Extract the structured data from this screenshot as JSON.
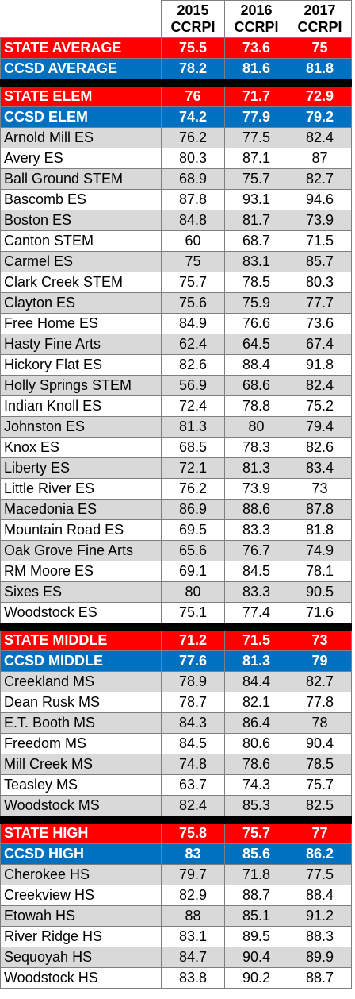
{
  "headers": [
    {
      "year": "2015",
      "label": "CCRPI"
    },
    {
      "year": "2016",
      "label": "CCRPI"
    },
    {
      "year": "2017",
      "label": "CCRPI"
    }
  ],
  "colors": {
    "state": "#ff0000",
    "ccsd": "#0070c0",
    "stripe": "#d9d9d9"
  },
  "rows": [
    {
      "type": "state",
      "name": "STATE AVERAGE",
      "values": [
        "75.5",
        "73.6",
        "75"
      ]
    },
    {
      "type": "ccsd",
      "name": "CCSD AVERAGE",
      "values": [
        "78.2",
        "81.6",
        "81.8"
      ]
    },
    {
      "type": "sep"
    },
    {
      "type": "state",
      "name": "STATE ELEM",
      "values": [
        "76",
        "71.7",
        "72.9"
      ]
    },
    {
      "type": "ccsd",
      "name": "CCSD ELEM",
      "values": [
        "74.2",
        "77.9",
        "79.2"
      ]
    },
    {
      "type": "school",
      "name": "Arnold Mill ES",
      "values": [
        "76.2",
        "77.5",
        "82.4"
      ]
    },
    {
      "type": "school",
      "name": "Avery ES",
      "values": [
        "80.3",
        "87.1",
        "87"
      ]
    },
    {
      "type": "school",
      "name": "Ball Ground STEM",
      "values": [
        "68.9",
        "75.7",
        "82.7"
      ]
    },
    {
      "type": "school",
      "name": "Bascomb ES",
      "values": [
        "87.8",
        "93.1",
        "94.6"
      ]
    },
    {
      "type": "school",
      "name": "Boston ES",
      "values": [
        "84.8",
        "81.7",
        "73.9"
      ]
    },
    {
      "type": "school",
      "name": "Canton STEM",
      "values": [
        "60",
        "68.7",
        "71.5"
      ]
    },
    {
      "type": "school",
      "name": "Carmel ES",
      "values": [
        "75",
        "83.1",
        "85.7"
      ]
    },
    {
      "type": "school",
      "name": "Clark Creek STEM",
      "values": [
        "75.7",
        "78.5",
        "80.3"
      ]
    },
    {
      "type": "school",
      "name": "Clayton ES",
      "values": [
        "75.6",
        "75.9",
        "77.7"
      ]
    },
    {
      "type": "school",
      "name": "Free Home ES",
      "values": [
        "84.9",
        "76.6",
        "73.6"
      ]
    },
    {
      "type": "school",
      "name": "Hasty Fine Arts",
      "values": [
        "62.4",
        "64.5",
        "67.4"
      ]
    },
    {
      "type": "school",
      "name": "Hickory Flat ES",
      "values": [
        "82.6",
        "88.4",
        "91.8"
      ]
    },
    {
      "type": "school",
      "name": "Holly Springs STEM",
      "values": [
        "56.9",
        "68.6",
        "82.4"
      ]
    },
    {
      "type": "school",
      "name": "Indian Knoll ES",
      "values": [
        "72.4",
        "78.8",
        "75.2"
      ]
    },
    {
      "type": "school",
      "name": "Johnston ES",
      "values": [
        "81.3",
        "80",
        "79.4"
      ]
    },
    {
      "type": "school",
      "name": "Knox ES",
      "values": [
        "68.5",
        "78.3",
        "82.6"
      ]
    },
    {
      "type": "school",
      "name": "Liberty ES",
      "values": [
        "72.1",
        "81.3",
        "83.4"
      ]
    },
    {
      "type": "school",
      "name": "Little River ES",
      "values": [
        "76.2",
        "73.9",
        "73"
      ]
    },
    {
      "type": "school",
      "name": "Macedonia ES",
      "values": [
        "86.9",
        "88.6",
        "87.8"
      ]
    },
    {
      "type": "school",
      "name": "Mountain Road ES",
      "values": [
        "69.5",
        "83.3",
        "81.8"
      ]
    },
    {
      "type": "school",
      "name": "Oak Grove Fine Arts",
      "values": [
        "65.6",
        "76.7",
        "74.9"
      ]
    },
    {
      "type": "school",
      "name": "RM Moore ES",
      "values": [
        "69.1",
        "84.5",
        "78.1"
      ]
    },
    {
      "type": "school",
      "name": "Sixes ES",
      "values": [
        "80",
        "83.3",
        "90.5"
      ]
    },
    {
      "type": "school",
      "name": "Woodstock ES",
      "values": [
        "75.1",
        "77.4",
        "71.6"
      ]
    },
    {
      "type": "sep"
    },
    {
      "type": "state",
      "name": "STATE MIDDLE",
      "values": [
        "71.2",
        "71.5",
        "73"
      ]
    },
    {
      "type": "ccsd",
      "name": "CCSD MIDDLE",
      "values": [
        "77.6",
        "81.3",
        "79"
      ]
    },
    {
      "type": "school",
      "name": "Creekland MS",
      "values": [
        "78.9",
        "84.4",
        "82.7"
      ]
    },
    {
      "type": "school",
      "name": "Dean Rusk MS",
      "values": [
        "78.7",
        "82.1",
        "77.8"
      ]
    },
    {
      "type": "school",
      "name": "E.T. Booth MS",
      "values": [
        "84.3",
        "86.4",
        "78"
      ]
    },
    {
      "type": "school",
      "name": "Freedom MS",
      "values": [
        "84.5",
        "80.6",
        "90.4"
      ]
    },
    {
      "type": "school",
      "name": "Mill Creek MS",
      "values": [
        "74.8",
        "78.6",
        "78.5"
      ]
    },
    {
      "type": "school",
      "name": "Teasley MS",
      "values": [
        "63.7",
        "74.3",
        "75.7"
      ]
    },
    {
      "type": "school",
      "name": "Woodstock MS",
      "values": [
        "82.4",
        "85.3",
        "82.5"
      ]
    },
    {
      "type": "sep"
    },
    {
      "type": "state",
      "name": "STATE HIGH",
      "values": [
        "75.8",
        "75.7",
        "77"
      ]
    },
    {
      "type": "ccsd",
      "name": "CCSD HIGH",
      "values": [
        "83",
        "85.6",
        "86.2"
      ]
    },
    {
      "type": "school",
      "name": "Cherokee HS",
      "values": [
        "79.7",
        "71.8",
        "77.5"
      ]
    },
    {
      "type": "school",
      "name": "Creekview HS",
      "values": [
        "82.9",
        "88.7",
        "88.4"
      ]
    },
    {
      "type": "school",
      "name": "Etowah HS",
      "values": [
        "88",
        "85.1",
        "91.2"
      ]
    },
    {
      "type": "school",
      "name": "River Ridge HS",
      "values": [
        "83.1",
        "89.5",
        "88.3"
      ]
    },
    {
      "type": "school",
      "name": "Sequoyah HS",
      "values": [
        "84.7",
        "90.4",
        "89.9"
      ]
    },
    {
      "type": "school",
      "name": "Woodstock HS",
      "values": [
        "83.8",
        "90.2",
        "88.7"
      ]
    }
  ]
}
